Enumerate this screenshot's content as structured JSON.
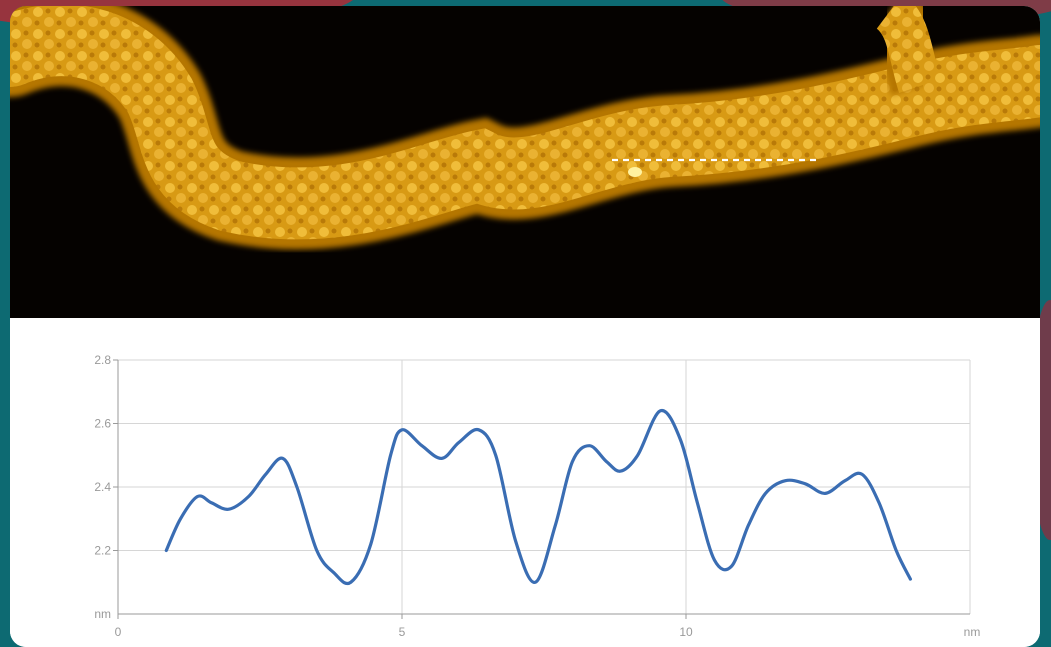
{
  "image": {
    "background_colors": {
      "frame": "#0d6a72",
      "accent": "#b02a35",
      "panel": "#ffffff"
    },
    "afm_scan": {
      "colors": [
        "#050200",
        "#c98500",
        "#f2c13c"
      ],
      "scan_line_color": "#ffffff"
    }
  },
  "chart_data": {
    "type": "line",
    "title": "",
    "xlabel": "",
    "ylabel": "",
    "x_unit": "nm",
    "y_unit": "nm",
    "xlim": [
      0,
      15
    ],
    "ylim": [
      2.0,
      2.8
    ],
    "x_ticks": [
      {
        "value": 0,
        "label": "0"
      },
      {
        "value": 5,
        "label": "5"
      },
      {
        "value": 10,
        "label": "10"
      }
    ],
    "y_ticks": [
      {
        "value": 2.2,
        "label": "2.2"
      },
      {
        "value": 2.4,
        "label": "2.4"
      },
      {
        "value": 2.6,
        "label": "2.6"
      },
      {
        "value": 2.8,
        "label": "2.8"
      }
    ],
    "y_origin_label": "nm",
    "grid": true,
    "line_color": "#3a6db3",
    "series": [
      {
        "x": [
          0.85,
          1.1,
          1.4,
          1.65,
          1.95,
          2.3,
          2.6,
          2.9,
          3.15,
          3.5,
          3.8,
          4.1,
          4.45,
          4.8,
          5.0,
          5.35,
          5.7,
          6.0,
          6.35,
          6.65,
          7.0,
          7.35,
          7.7,
          8.0,
          8.3,
          8.6,
          8.85,
          9.15,
          9.55,
          9.9,
          10.2,
          10.5,
          10.8,
          11.1,
          11.4,
          11.75,
          12.1,
          12.45,
          12.8,
          13.1,
          13.4,
          13.7,
          13.95
        ],
        "y": [
          2.2,
          2.3,
          2.37,
          2.35,
          2.33,
          2.37,
          2.44,
          2.49,
          2.4,
          2.2,
          2.13,
          2.1,
          2.22,
          2.5,
          2.58,
          2.53,
          2.49,
          2.54,
          2.58,
          2.5,
          2.23,
          2.1,
          2.28,
          2.48,
          2.53,
          2.48,
          2.45,
          2.5,
          2.64,
          2.55,
          2.35,
          2.17,
          2.15,
          2.28,
          2.38,
          2.42,
          2.41,
          2.38,
          2.42,
          2.44,
          2.35,
          2.2,
          2.11
        ]
      }
    ]
  }
}
